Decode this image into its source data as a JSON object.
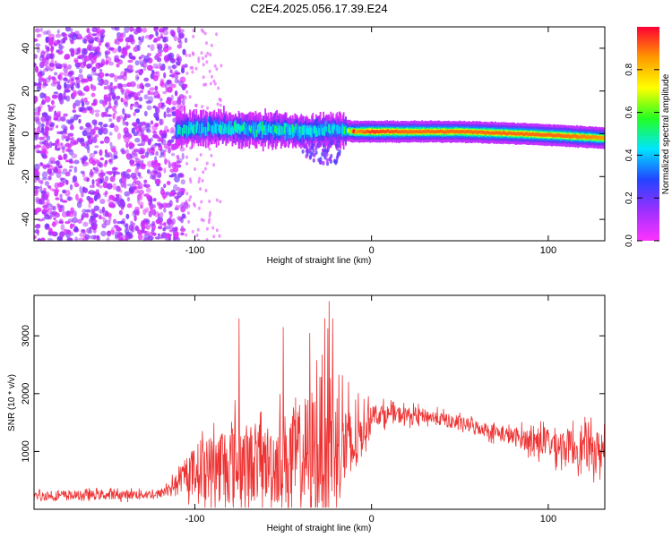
{
  "title": "C2E4.2025.056.17.39.E24",
  "chart_data": [
    {
      "type": "heatmap",
      "title": "C2E4.2025.056.17.39.E24",
      "xlabel": "Height of straight line (km)",
      "ylabel": "Frequency (Hz)",
      "xlim": [
        -191,
        132
      ],
      "ylim": [
        -50,
        50
      ],
      "xticks": [
        "-100",
        "0",
        "100"
      ],
      "yticks": [
        "-40",
        "-20",
        "0",
        "20",
        "40"
      ],
      "colorbar": {
        "label": "Normalized spectral amplitude",
        "range": [
          0.0,
          1.0
        ],
        "ticks": [
          "0.0",
          "0.2",
          "0.4",
          "0.6",
          "0.8"
        ],
        "colormap": [
          "#ff33ff",
          "#9b30ff",
          "#2244ff",
          "#00e5ff",
          "#22ff22",
          "#ffff00",
          "#ff9900",
          "#ff0033"
        ]
      },
      "ridge": [
        {
          "x": -111,
          "freq": 2,
          "peak": 0.55
        },
        {
          "x": -90,
          "freq": 3,
          "peak": 0.55
        },
        {
          "x": -70,
          "freq": 2,
          "peak": 0.6
        },
        {
          "x": -50,
          "freq": 2,
          "peak": 0.6
        },
        {
          "x": -35,
          "freq": 1,
          "peak": 0.6
        },
        {
          "x": -20,
          "freq": 2,
          "peak": 0.5
        },
        {
          "x": -10,
          "freq": 1,
          "peak": 0.85
        },
        {
          "x": 0,
          "freq": 1,
          "peak": 0.95
        },
        {
          "x": 20,
          "freq": 1,
          "peak": 0.9
        },
        {
          "x": 50,
          "freq": 1,
          "peak": 0.9
        },
        {
          "x": 85,
          "freq": 0,
          "peak": 0.9
        },
        {
          "x": 110,
          "freq": -1,
          "peak": 0.9
        },
        {
          "x": 132,
          "freq": -2,
          "peak": 0.85
        }
      ],
      "noise_region": [
        -191,
        -105
      ]
    },
    {
      "type": "line",
      "xlabel": "Height of straight line (km)",
      "ylabel": "SNR (10 * v/v)",
      "xlim": [
        -191,
        132
      ],
      "ylim": [
        0,
        3700
      ],
      "xticks": [
        "-100",
        "0",
        "100"
      ],
      "yticks": [
        "1000",
        "2000",
        "3000"
      ],
      "color": "#ee3333",
      "envelope": [
        {
          "x": -191,
          "mean": 230,
          "spread": 130
        },
        {
          "x": -120,
          "mean": 260,
          "spread": 130
        },
        {
          "x": -110,
          "mean": 450,
          "spread": 250
        },
        {
          "x": -100,
          "mean": 700,
          "spread": 700
        },
        {
          "x": -80,
          "mean": 800,
          "spread": 1200
        },
        {
          "x": -60,
          "mean": 800,
          "spread": 1100
        },
        {
          "x": -40,
          "mean": 900,
          "spread": 1600
        },
        {
          "x": -25,
          "mean": 1200,
          "spread": 2200
        },
        {
          "x": -10,
          "mean": 1050,
          "spread": 1000
        },
        {
          "x": 0,
          "mean": 1650,
          "spread": 300
        },
        {
          "x": 30,
          "mean": 1620,
          "spread": 200
        },
        {
          "x": 60,
          "mean": 1420,
          "spread": 200
        },
        {
          "x": 80,
          "mean": 1250,
          "spread": 250
        },
        {
          "x": 100,
          "mean": 1150,
          "spread": 450
        },
        {
          "x": 132,
          "mean": 1000,
          "spread": 600
        }
      ],
      "spikes": [
        {
          "x": -75,
          "y": 3300
        },
        {
          "x": -50,
          "y": 3150
        },
        {
          "x": -35,
          "y": 3050
        },
        {
          "x": -24,
          "y": 3600
        },
        {
          "x": -22,
          "y": 3300
        }
      ]
    }
  ]
}
